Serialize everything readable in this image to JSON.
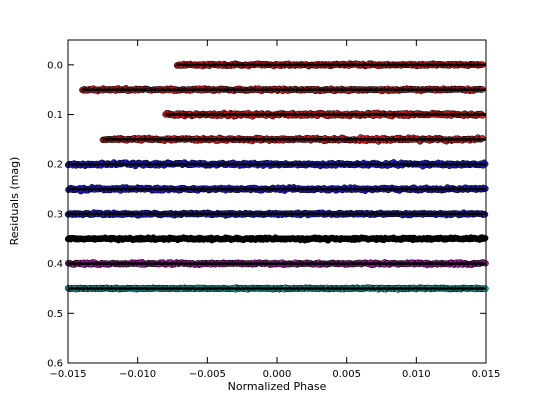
{
  "chart_data": {
    "type": "scatter",
    "title": "",
    "xlabel": "Normalized Phase",
    "ylabel": "Residuals (mag)",
    "xlim": [
      -0.015,
      0.015
    ],
    "ylim": [
      0.6,
      -0.05
    ],
    "y_inverted": true,
    "grid": false,
    "legend": "none",
    "x_ticks": [
      -0.015,
      -0.01,
      -0.005,
      0.0,
      0.005,
      0.01,
      0.015
    ],
    "x_tick_labels": [
      "−0.015",
      "−0.010",
      "−0.005",
      "0.000",
      "0.005",
      "0.010",
      "0.015"
    ],
    "y_ticks": [
      0.0,
      0.1,
      0.2,
      0.3,
      0.4,
      0.5,
      0.6
    ],
    "y_tick_labels": [
      "0.0",
      "0.1",
      "0.2",
      "0.3",
      "0.4",
      "0.5",
      "0.6"
    ],
    "model_line_color": "#000000",
    "series": [
      {
        "offset": 0.0,
        "x_range": [
          -0.0072,
          0.0148
        ],
        "scatter": 0.003,
        "color": "#e31a1c"
      },
      {
        "offset": 0.05,
        "x_range": [
          -0.014,
          0.0148
        ],
        "scatter": 0.003,
        "color": "#e31a1c"
      },
      {
        "offset": 0.1,
        "x_range": [
          -0.008,
          0.0148
        ],
        "scatter": 0.004,
        "color": "#e31a1c"
      },
      {
        "offset": 0.15,
        "x_range": [
          -0.0125,
          0.0148
        ],
        "scatter": 0.004,
        "color": "#e31a1c"
      },
      {
        "offset": 0.2,
        "x_range": [
          -0.015,
          0.015
        ],
        "scatter": 0.004,
        "color": "#1f1fd6"
      },
      {
        "offset": 0.25,
        "x_range": [
          -0.015,
          0.015
        ],
        "scatter": 0.004,
        "color": "#1f1fd6"
      },
      {
        "offset": 0.3,
        "x_range": [
          -0.015,
          0.015
        ],
        "scatter": 0.003,
        "color": "#1f1fd6"
      },
      {
        "offset": 0.35,
        "x_range": [
          -0.015,
          0.015
        ],
        "scatter": 0.003,
        "color": "#000000"
      },
      {
        "offset": 0.4,
        "x_range": [
          -0.015,
          0.015
        ],
        "scatter": 0.003,
        "color": "#b01ab0"
      },
      {
        "offset": 0.45,
        "x_range": [
          -0.015,
          0.015
        ],
        "scatter": 0.002,
        "color": "#22b2b2"
      }
    ]
  }
}
